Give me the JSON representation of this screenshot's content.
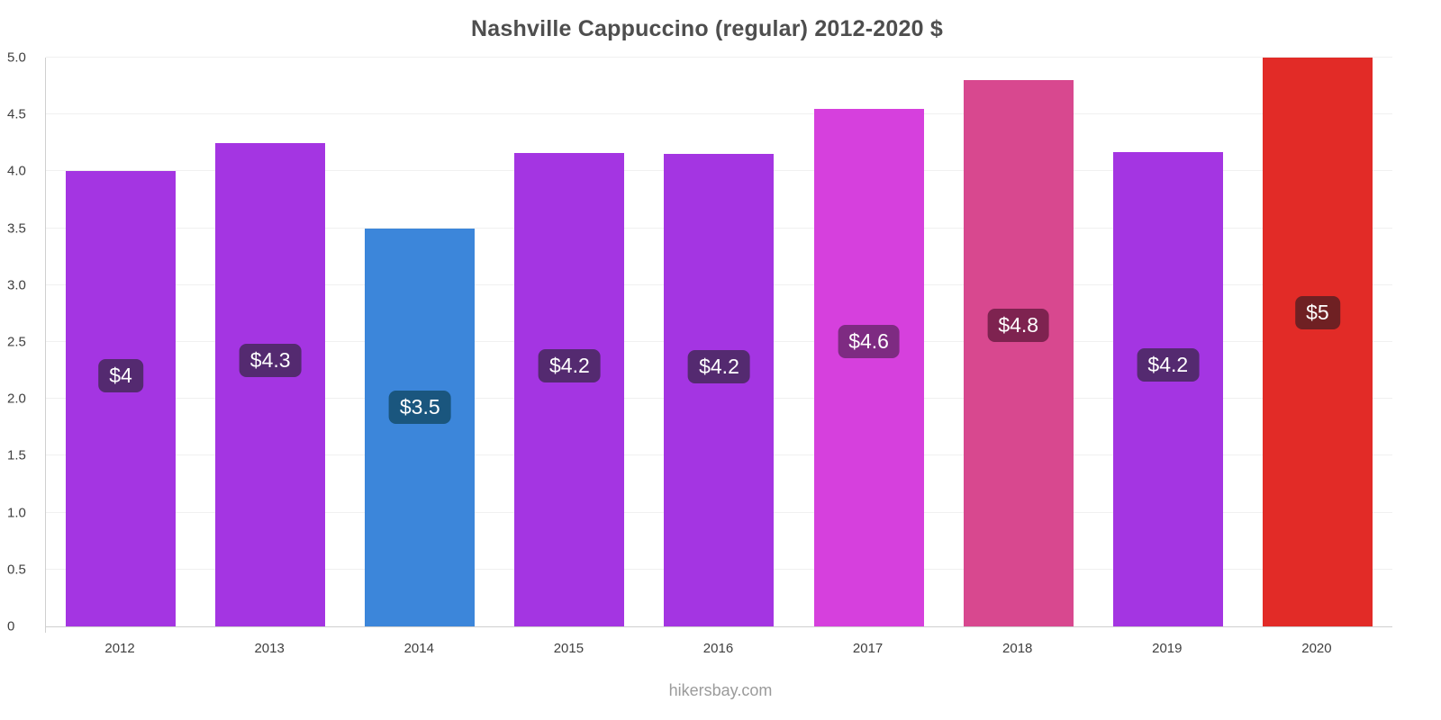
{
  "chart_data": {
    "type": "bar",
    "title": "Nashville Cappuccino (regular) 2012-2020 $",
    "categories": [
      "2012",
      "2013",
      "2014",
      "2015",
      "2016",
      "2017",
      "2018",
      "2019",
      "2020"
    ],
    "values": [
      4,
      4.3,
      3.5,
      4.2,
      4.2,
      4.6,
      4.8,
      4.2,
      5
    ],
    "bar_heights": [
      4.0,
      4.25,
      3.5,
      4.16,
      4.15,
      4.55,
      4.8,
      4.17,
      5.0
    ],
    "labels": [
      "$4",
      "$4.3",
      "$3.5",
      "$4.2",
      "$4.2",
      "$4.6",
      "$4.8",
      "$4.2",
      "$5"
    ],
    "bar_colors": [
      "#a435e2",
      "#a435e2",
      "#3c86da",
      "#a435e2",
      "#a435e2",
      "#d640dd",
      "#d8488f",
      "#a435e2",
      "#e22b27"
    ],
    "badge_colors": [
      "#542a70",
      "#542a70",
      "#1a567e",
      "#542a70",
      "#542a70",
      "#7e2b82",
      "#7e2350",
      "#542a70",
      "#6f2023"
    ],
    "xlabel": "",
    "ylabel": "",
    "ylim": [
      0,
      5
    ],
    "ytick_step": 0.5,
    "yticks": [
      "0",
      "0.5",
      "1.0",
      "1.5",
      "2.0",
      "2.5",
      "3.0",
      "3.5",
      "4.0",
      "4.5",
      "5.0"
    ],
    "grid": true,
    "legend": false
  },
  "footer": {
    "text": "hikersbay.com"
  }
}
